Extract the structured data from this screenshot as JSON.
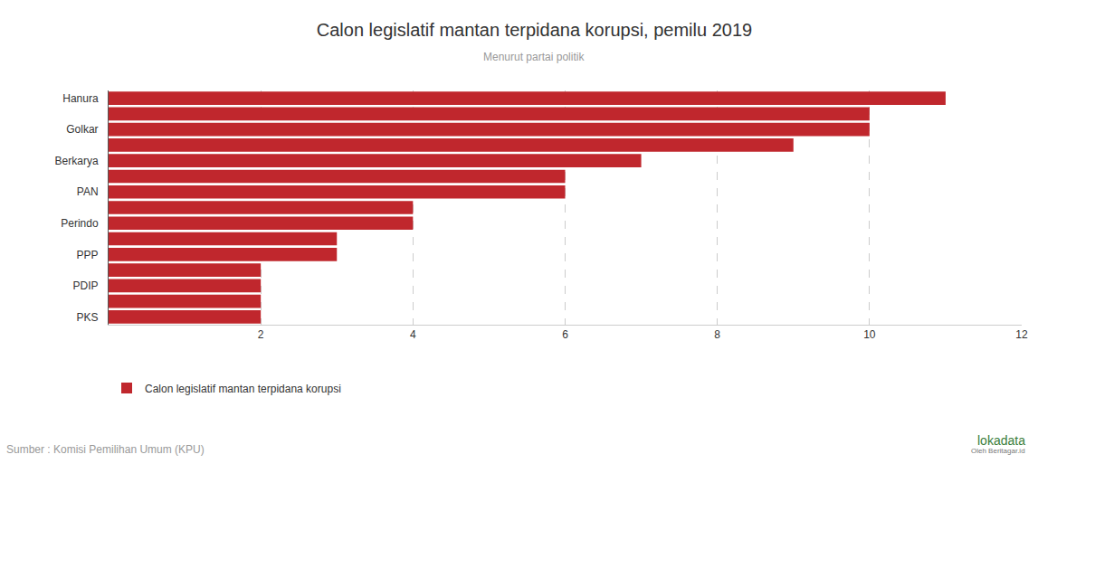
{
  "chart_data": {
    "type": "bar",
    "title": "Calon legislatif mantan terpidana korupsi, pemilu 2019",
    "subtitle": "Menurut partai politik",
    "orientation": "horizontal",
    "categories": [
      "Hanura",
      null,
      "Golkar",
      null,
      "Berkarya",
      null,
      "PAN",
      null,
      "Perindo",
      null,
      "PPP",
      null,
      "PDIP",
      null,
      "PKS"
    ],
    "series": [
      {
        "name": "Calon legislatif mantan terpidana korupsi",
        "color": "#c0272d",
        "values": [
          11,
          10,
          10,
          9,
          7,
          6,
          6,
          4,
          4,
          3,
          3,
          2,
          2,
          2,
          2
        ]
      }
    ],
    "xlim": [
      0,
      12
    ],
    "xticks": [
      2,
      4,
      6,
      8,
      10,
      12
    ],
    "grid": true,
    "legend": "bottom-left",
    "annotations": [
      "Sumber : Komisi Pemilihan Umum (KPU)",
      "lokadata",
      "Oleh Beritagar.id"
    ]
  }
}
